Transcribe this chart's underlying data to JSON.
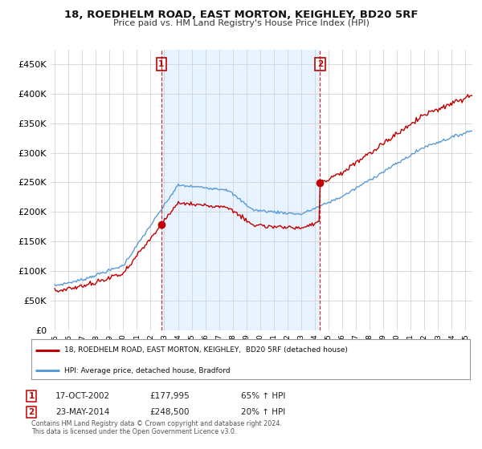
{
  "title": "18, ROEDHELM ROAD, EAST MORTON, KEIGHLEY, BD20 5RF",
  "subtitle": "Price paid vs. HM Land Registry's House Price Index (HPI)",
  "ylabel_ticks": [
    "£0",
    "£50K",
    "£100K",
    "£150K",
    "£200K",
    "£250K",
    "£300K",
    "£350K",
    "£400K",
    "£450K"
  ],
  "ytick_values": [
    0,
    50000,
    100000,
    150000,
    200000,
    250000,
    300000,
    350000,
    400000,
    450000
  ],
  "ylim": [
    0,
    475000
  ],
  "xlim_start": 1994.7,
  "xlim_end": 2025.5,
  "hpi_color": "#5b9bd5",
  "price_color": "#c00000",
  "shade_color": "#ddeeff",
  "marker1_x": 2002.79,
  "marker1_y": 177995,
  "marker2_x": 2014.37,
  "marker2_y": 248500,
  "sale1_date": "17-OCT-2002",
  "sale1_price": "£177,995",
  "sale1_hpi": "65% ↑ HPI",
  "sale2_date": "23-MAY-2014",
  "sale2_price": "£248,500",
  "sale2_hpi": "20% ↑ HPI",
  "legend_label1": "18, ROEDHELM ROAD, EAST MORTON, KEIGHLEY,  BD20 5RF (detached house)",
  "legend_label2": "HPI: Average price, detached house, Bradford",
  "footer1": "Contains HM Land Registry data © Crown copyright and database right 2024.",
  "footer2": "This data is licensed under the Open Government Licence v3.0.",
  "bg_color": "#ffffff",
  "plot_bg_color": "#ffffff",
  "grid_color": "#cccccc"
}
